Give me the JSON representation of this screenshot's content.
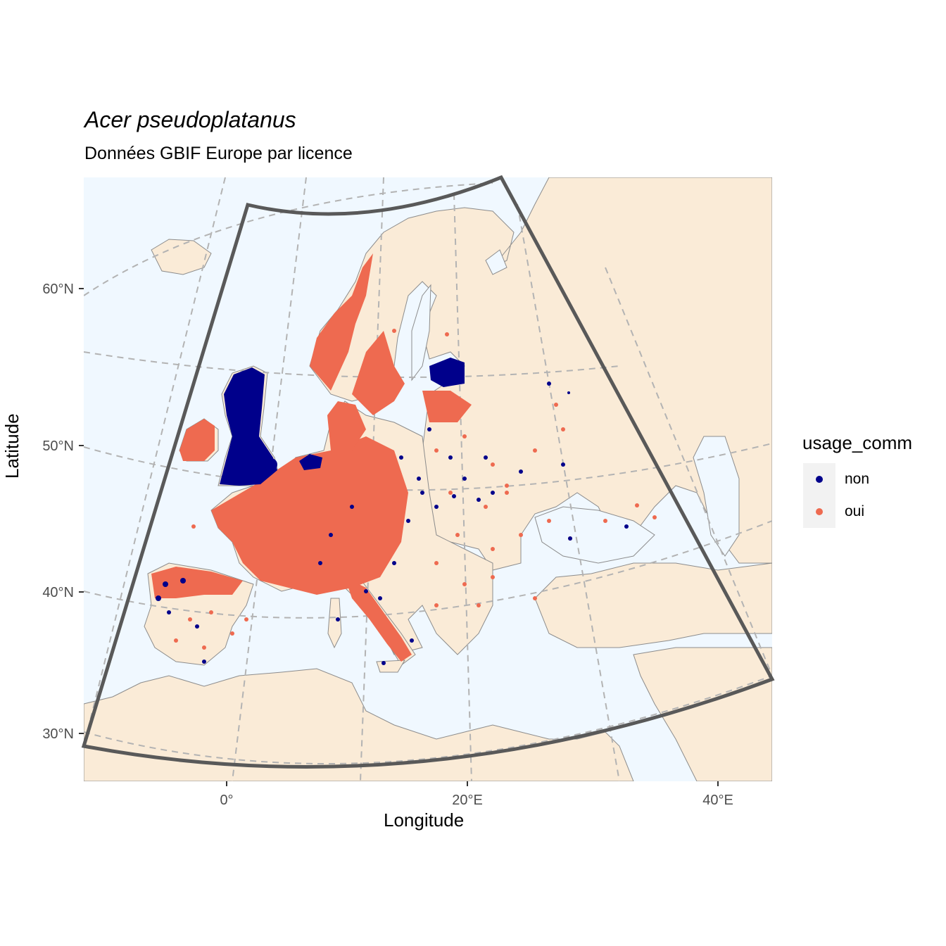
{
  "title": "Acer pseudoplatanus",
  "subtitle": "Données GBIF Europe par licence",
  "xlabel": "Longitude",
  "ylabel": "Latitude",
  "y_ticks": [
    "60°N",
    "50°N",
    "40°N",
    "30°N"
  ],
  "x_ticks": [
    "0°",
    "20°E",
    "40°E"
  ],
  "legend": {
    "title": "usage_comm",
    "items": [
      {
        "label": "non",
        "color": "#00008b"
      },
      {
        "label": "oui",
        "color": "#ee6a50"
      }
    ]
  },
  "colors": {
    "sea": "#f0f8ff",
    "land": "#faebd7",
    "border": "#8c8c8c",
    "graticule": "#b3b3b3",
    "frame": "#595959"
  },
  "chart_data": {
    "type": "scatter",
    "series": [
      {
        "name": "non",
        "color": "#00008b"
      },
      {
        "name": "oui",
        "color": "#ee6a50"
      }
    ]
  }
}
